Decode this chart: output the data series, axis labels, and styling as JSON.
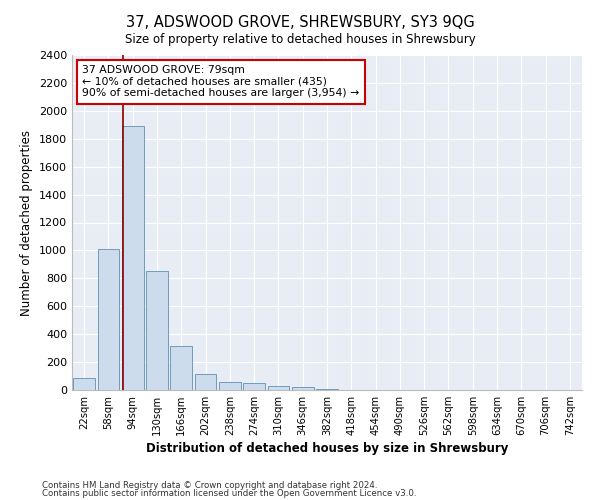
{
  "title": "37, ADSWOOD GROVE, SHREWSBURY, SY3 9QG",
  "subtitle": "Size of property relative to detached houses in Shrewsbury",
  "xlabel": "Distribution of detached houses by size in Shrewsbury",
  "ylabel": "Number of detached properties",
  "bar_color": "#ccdcec",
  "bar_edge_color": "#6090b0",
  "background_color": "#e8ecf4",
  "grid_color": "#ffffff",
  "fig_facecolor": "#ffffff",
  "categories": [
    "22sqm",
    "58sqm",
    "94sqm",
    "130sqm",
    "166sqm",
    "202sqm",
    "238sqm",
    "274sqm",
    "310sqm",
    "346sqm",
    "382sqm",
    "418sqm",
    "454sqm",
    "490sqm",
    "526sqm",
    "562sqm",
    "598sqm",
    "634sqm",
    "670sqm",
    "706sqm",
    "742sqm"
  ],
  "bar_heights": [
    85,
    1010,
    1890,
    855,
    315,
    115,
    58,
    48,
    30,
    20,
    5,
    0,
    0,
    0,
    0,
    0,
    0,
    0,
    0,
    0,
    0
  ],
  "ylim": [
    0,
    2400
  ],
  "yticks": [
    0,
    200,
    400,
    600,
    800,
    1000,
    1200,
    1400,
    1600,
    1800,
    2000,
    2200,
    2400
  ],
  "property_line_x": 1.62,
  "property_line_color": "#8b0000",
  "annotation_line1": "37 ADSWOOD GROVE: 79sqm",
  "annotation_line2": "← 10% of detached houses are smaller (435)",
  "annotation_line3": "90% of semi-detached houses are larger (3,954) →",
  "annotation_box_color": "#ffffff",
  "annotation_box_edge_color": "#cc0000",
  "footer_line1": "Contains HM Land Registry data © Crown copyright and database right 2024.",
  "footer_line2": "Contains public sector information licensed under the Open Government Licence v3.0."
}
